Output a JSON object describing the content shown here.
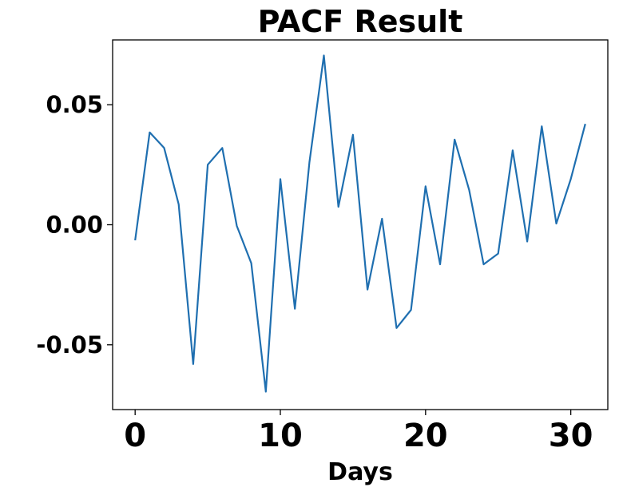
{
  "chart_data": {
    "type": "line",
    "title": "PACF Result",
    "xlabel": "Days",
    "ylabel": "",
    "xlim": [
      -1.55,
      32.55
    ],
    "ylim": [
      -0.077,
      0.077
    ],
    "x_ticks": [
      {
        "value": 0,
        "label": "0"
      },
      {
        "value": 10,
        "label": "10"
      },
      {
        "value": 20,
        "label": "20"
      },
      {
        "value": 30,
        "label": "30"
      }
    ],
    "y_ticks": [
      {
        "value": 0.05,
        "label": "0.05"
      },
      {
        "value": 0.0,
        "label": "0.00"
      },
      {
        "value": -0.05,
        "label": "-0.05"
      }
    ],
    "grid": false,
    "series": [
      {
        "color": "#1f6fb0",
        "x": [
          0,
          1,
          2,
          3,
          4,
          5,
          6,
          7,
          8,
          9,
          10,
          11,
          12,
          13,
          14,
          15,
          16,
          17,
          18,
          19,
          20,
          21,
          22,
          23,
          24,
          25,
          26,
          27,
          28,
          29,
          30,
          31
        ],
        "y": [
          -0.0065,
          0.0385,
          0.032,
          0.0085,
          -0.058,
          0.025,
          0.032,
          -0.0005,
          -0.016,
          -0.0695,
          0.019,
          -0.035,
          0.026,
          0.0705,
          0.0075,
          0.0375,
          -0.027,
          0.0025,
          -0.043,
          -0.0355,
          0.016,
          -0.0165,
          0.0355,
          0.0145,
          -0.0165,
          -0.012,
          0.031,
          -0.007,
          0.041,
          0.0005,
          0.019,
          0.042
        ]
      }
    ]
  }
}
